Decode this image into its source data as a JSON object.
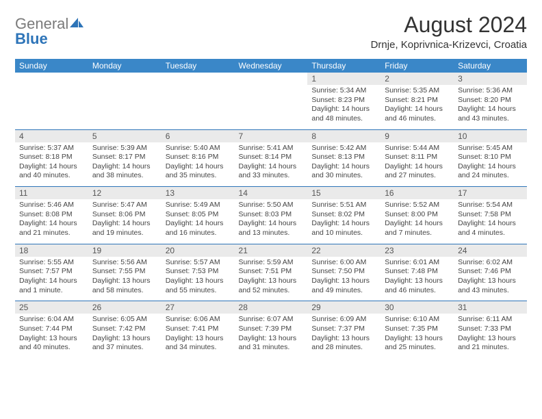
{
  "brand": {
    "text_gray": "General",
    "text_blue": "Blue"
  },
  "title": "August 2024",
  "location": "Drnje, Koprivnica-Krizevci, Croatia",
  "colors": {
    "header_bg": "#3a87c8",
    "accent": "#2d74b8",
    "daynum_bg": "#eaeaea",
    "text_main": "#333333",
    "text_muted": "#555555",
    "logo_gray": "#7a7a7a"
  },
  "day_names": [
    "Sunday",
    "Monday",
    "Tuesday",
    "Wednesday",
    "Thursday",
    "Friday",
    "Saturday"
  ],
  "weeks": [
    [
      null,
      null,
      null,
      null,
      {
        "n": "1",
        "sr": "Sunrise: 5:34 AM",
        "ss": "Sunset: 8:23 PM",
        "dl": "Daylight: 14 hours and 48 minutes."
      },
      {
        "n": "2",
        "sr": "Sunrise: 5:35 AM",
        "ss": "Sunset: 8:21 PM",
        "dl": "Daylight: 14 hours and 46 minutes."
      },
      {
        "n": "3",
        "sr": "Sunrise: 5:36 AM",
        "ss": "Sunset: 8:20 PM",
        "dl": "Daylight: 14 hours and 43 minutes."
      }
    ],
    [
      {
        "n": "4",
        "sr": "Sunrise: 5:37 AM",
        "ss": "Sunset: 8:18 PM",
        "dl": "Daylight: 14 hours and 40 minutes."
      },
      {
        "n": "5",
        "sr": "Sunrise: 5:39 AM",
        "ss": "Sunset: 8:17 PM",
        "dl": "Daylight: 14 hours and 38 minutes."
      },
      {
        "n": "6",
        "sr": "Sunrise: 5:40 AM",
        "ss": "Sunset: 8:16 PM",
        "dl": "Daylight: 14 hours and 35 minutes."
      },
      {
        "n": "7",
        "sr": "Sunrise: 5:41 AM",
        "ss": "Sunset: 8:14 PM",
        "dl": "Daylight: 14 hours and 33 minutes."
      },
      {
        "n": "8",
        "sr": "Sunrise: 5:42 AM",
        "ss": "Sunset: 8:13 PM",
        "dl": "Daylight: 14 hours and 30 minutes."
      },
      {
        "n": "9",
        "sr": "Sunrise: 5:44 AM",
        "ss": "Sunset: 8:11 PM",
        "dl": "Daylight: 14 hours and 27 minutes."
      },
      {
        "n": "10",
        "sr": "Sunrise: 5:45 AM",
        "ss": "Sunset: 8:10 PM",
        "dl": "Daylight: 14 hours and 24 minutes."
      }
    ],
    [
      {
        "n": "11",
        "sr": "Sunrise: 5:46 AM",
        "ss": "Sunset: 8:08 PM",
        "dl": "Daylight: 14 hours and 21 minutes."
      },
      {
        "n": "12",
        "sr": "Sunrise: 5:47 AM",
        "ss": "Sunset: 8:06 PM",
        "dl": "Daylight: 14 hours and 19 minutes."
      },
      {
        "n": "13",
        "sr": "Sunrise: 5:49 AM",
        "ss": "Sunset: 8:05 PM",
        "dl": "Daylight: 14 hours and 16 minutes."
      },
      {
        "n": "14",
        "sr": "Sunrise: 5:50 AM",
        "ss": "Sunset: 8:03 PM",
        "dl": "Daylight: 14 hours and 13 minutes."
      },
      {
        "n": "15",
        "sr": "Sunrise: 5:51 AM",
        "ss": "Sunset: 8:02 PM",
        "dl": "Daylight: 14 hours and 10 minutes."
      },
      {
        "n": "16",
        "sr": "Sunrise: 5:52 AM",
        "ss": "Sunset: 8:00 PM",
        "dl": "Daylight: 14 hours and 7 minutes."
      },
      {
        "n": "17",
        "sr": "Sunrise: 5:54 AM",
        "ss": "Sunset: 7:58 PM",
        "dl": "Daylight: 14 hours and 4 minutes."
      }
    ],
    [
      {
        "n": "18",
        "sr": "Sunrise: 5:55 AM",
        "ss": "Sunset: 7:57 PM",
        "dl": "Daylight: 14 hours and 1 minute."
      },
      {
        "n": "19",
        "sr": "Sunrise: 5:56 AM",
        "ss": "Sunset: 7:55 PM",
        "dl": "Daylight: 13 hours and 58 minutes."
      },
      {
        "n": "20",
        "sr": "Sunrise: 5:57 AM",
        "ss": "Sunset: 7:53 PM",
        "dl": "Daylight: 13 hours and 55 minutes."
      },
      {
        "n": "21",
        "sr": "Sunrise: 5:59 AM",
        "ss": "Sunset: 7:51 PM",
        "dl": "Daylight: 13 hours and 52 minutes."
      },
      {
        "n": "22",
        "sr": "Sunrise: 6:00 AM",
        "ss": "Sunset: 7:50 PM",
        "dl": "Daylight: 13 hours and 49 minutes."
      },
      {
        "n": "23",
        "sr": "Sunrise: 6:01 AM",
        "ss": "Sunset: 7:48 PM",
        "dl": "Daylight: 13 hours and 46 minutes."
      },
      {
        "n": "24",
        "sr": "Sunrise: 6:02 AM",
        "ss": "Sunset: 7:46 PM",
        "dl": "Daylight: 13 hours and 43 minutes."
      }
    ],
    [
      {
        "n": "25",
        "sr": "Sunrise: 6:04 AM",
        "ss": "Sunset: 7:44 PM",
        "dl": "Daylight: 13 hours and 40 minutes."
      },
      {
        "n": "26",
        "sr": "Sunrise: 6:05 AM",
        "ss": "Sunset: 7:42 PM",
        "dl": "Daylight: 13 hours and 37 minutes."
      },
      {
        "n": "27",
        "sr": "Sunrise: 6:06 AM",
        "ss": "Sunset: 7:41 PM",
        "dl": "Daylight: 13 hours and 34 minutes."
      },
      {
        "n": "28",
        "sr": "Sunrise: 6:07 AM",
        "ss": "Sunset: 7:39 PM",
        "dl": "Daylight: 13 hours and 31 minutes."
      },
      {
        "n": "29",
        "sr": "Sunrise: 6:09 AM",
        "ss": "Sunset: 7:37 PM",
        "dl": "Daylight: 13 hours and 28 minutes."
      },
      {
        "n": "30",
        "sr": "Sunrise: 6:10 AM",
        "ss": "Sunset: 7:35 PM",
        "dl": "Daylight: 13 hours and 25 minutes."
      },
      {
        "n": "31",
        "sr": "Sunrise: 6:11 AM",
        "ss": "Sunset: 7:33 PM",
        "dl": "Daylight: 13 hours and 21 minutes."
      }
    ]
  ]
}
